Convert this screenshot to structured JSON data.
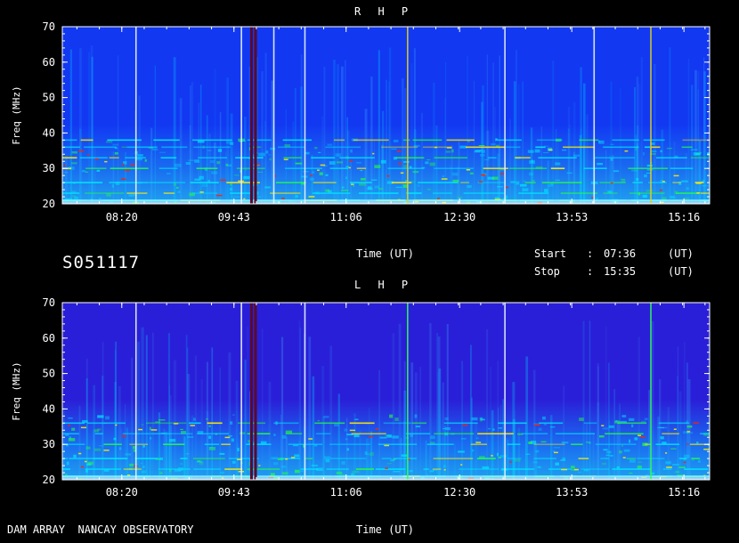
{
  "observation_id": "S051117",
  "footer_left": "DAM ARRAY  NANCAY OBSERVATORY",
  "info": {
    "start_label": "Start",
    "start_sep": ":",
    "start_value": "07:36",
    "start_unit": "(UT)",
    "stop_label": "Stop",
    "stop_sep": ":",
    "stop_value": "15:35",
    "stop_unit": "(UT)"
  },
  "colors": {
    "background": "#000000",
    "rhp_base": "#1238f2",
    "lhp_base": "#2a1fd8",
    "cyan": "#00e5ff",
    "green": "#22ff44",
    "yellow": "#ffee00",
    "red": "#ff2200",
    "gap": "#5a0a2a"
  },
  "chart_data": [
    {
      "type": "heatmap",
      "title": "R H P",
      "xlabel": "Time (UT)",
      "ylabel": "Freq (MHz)",
      "xlim": [
        "07:36",
        "15:35"
      ],
      "ylim": [
        20,
        70
      ],
      "x_ticks": [
        "08:20",
        "09:43",
        "11:06",
        "12:30",
        "13:53",
        "15:16"
      ],
      "y_ticks": [
        20,
        30,
        40,
        50,
        60,
        70
      ],
      "data_gaps": [
        [
          "09:55",
          "09:57"
        ],
        [
          "09:58",
          "09:59"
        ]
      ],
      "vertical_lines": [
        {
          "time": "08:30",
          "color": "white"
        },
        {
          "time": "09:48",
          "color": "white"
        },
        {
          "time": "10:12",
          "color": "white"
        },
        {
          "time": "10:35",
          "color": "white"
        },
        {
          "time": "11:51",
          "color": "yellow"
        },
        {
          "time": "13:03",
          "color": "white"
        },
        {
          "time": "14:09",
          "color": "white"
        },
        {
          "time": "14:51",
          "color": "yellow"
        }
      ],
      "emission_bands_mhz": [
        21,
        23,
        26,
        30,
        33,
        36,
        38
      ]
    },
    {
      "type": "heatmap",
      "title": "L H P",
      "xlabel": "Time (UT)",
      "ylabel": "Freq (MHz)",
      "xlim": [
        "07:36",
        "15:35"
      ],
      "ylim": [
        20,
        70
      ],
      "x_ticks": [
        "08:20",
        "09:43",
        "11:06",
        "12:30",
        "13:53",
        "15:16"
      ],
      "y_ticks": [
        20,
        30,
        40,
        50,
        60,
        70
      ],
      "data_gaps": [
        [
          "09:55",
          "09:57"
        ],
        [
          "09:58",
          "09:59"
        ]
      ],
      "vertical_lines": [
        {
          "time": "08:30",
          "color": "white"
        },
        {
          "time": "09:48",
          "color": "white"
        },
        {
          "time": "10:35",
          "color": "white"
        },
        {
          "time": "11:51",
          "color": "green"
        },
        {
          "time": "13:03",
          "color": "white"
        },
        {
          "time": "14:51",
          "color": "green"
        }
      ],
      "emission_bands_mhz": [
        21,
        23,
        26,
        30,
        33,
        36
      ]
    }
  ]
}
